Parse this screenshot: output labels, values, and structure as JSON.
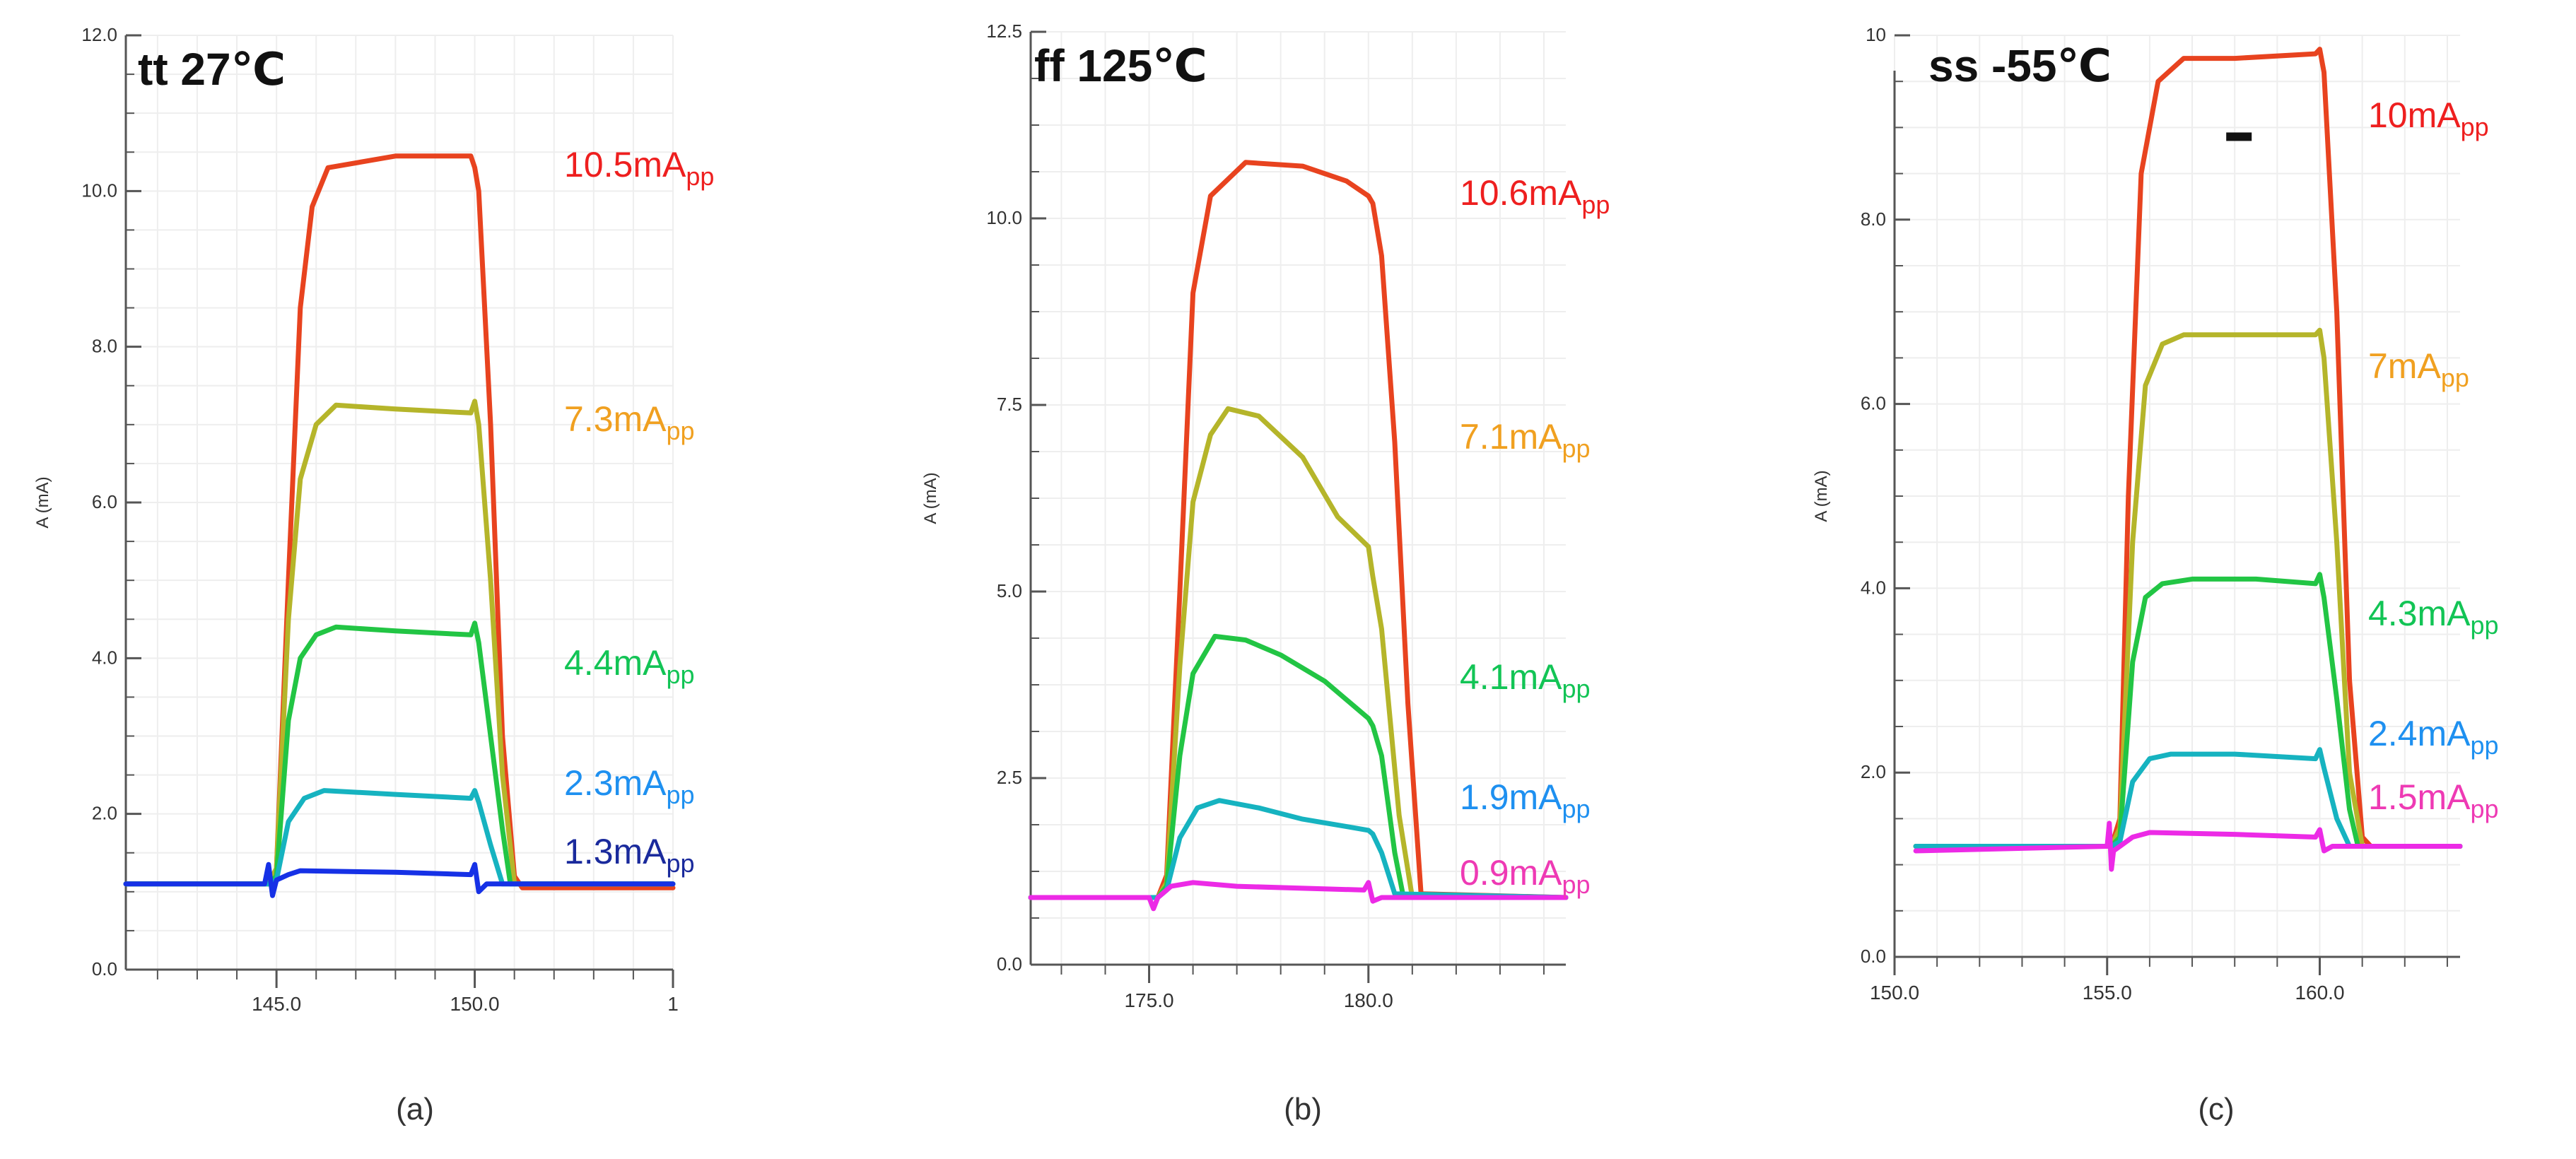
{
  "chart_data": [
    {
      "type": "line",
      "panel": "(a)",
      "title": "tt 27℃",
      "xlabel": "",
      "ylabel": "A (mA)",
      "xlim": [
        141.2,
        155.0
      ],
      "ylim": [
        0.0,
        12.0
      ],
      "xticks": [
        145.0,
        150.0
      ],
      "xtick_labels": [
        "145.0",
        "150.0"
      ],
      "trailing_xtick_label": "1",
      "yticks": [
        0.0,
        2.0,
        4.0,
        6.0,
        8.0,
        10.0,
        12.0
      ],
      "ytick_labels": [
        "0.0",
        "2.0",
        "4.0",
        "6.0",
        "8.0",
        "10.0",
        "12.0"
      ],
      "grid": true,
      "series": [
        {
          "name": "10.5mA",
          "sub": "pp",
          "color": "#e8431f",
          "x": [
            141.2,
            144.8,
            145.0,
            145.3,
            145.6,
            145.9,
            146.3,
            148.0,
            149.9,
            150.0,
            150.1,
            150.4,
            150.7,
            151.0,
            151.2,
            155.0
          ],
          "y": [
            1.1,
            1.1,
            1.3,
            5.0,
            8.5,
            9.8,
            10.3,
            10.45,
            10.45,
            10.3,
            10.0,
            7.0,
            3.0,
            1.2,
            1.05,
            1.05
          ]
        },
        {
          "name": "7.3mA",
          "sub": "pp",
          "color": "#b5b52a",
          "x": [
            141.2,
            144.8,
            145.0,
            145.3,
            145.6,
            146.0,
            146.5,
            148.0,
            149.9,
            150.0,
            150.1,
            150.4,
            150.7,
            151.0,
            155.0
          ],
          "y": [
            1.1,
            1.1,
            1.3,
            4.5,
            6.3,
            7.0,
            7.25,
            7.2,
            7.15,
            7.3,
            7.0,
            5.0,
            2.5,
            1.1,
            1.1
          ]
        },
        {
          "name": "4.4mA",
          "sub": "pp",
          "color": "#22c544",
          "x": [
            141.2,
            144.8,
            145.0,
            145.3,
            145.6,
            146.0,
            146.5,
            148.0,
            149.9,
            150.0,
            150.1,
            150.4,
            150.7,
            150.9,
            155.0
          ],
          "y": [
            1.1,
            1.1,
            1.2,
            3.2,
            4.0,
            4.3,
            4.4,
            4.35,
            4.3,
            4.45,
            4.2,
            3.0,
            1.8,
            1.1,
            1.1
          ]
        },
        {
          "name": "2.3mA",
          "sub": "pp",
          "color": "#16b3c0",
          "x": [
            141.2,
            144.8,
            145.0,
            145.3,
            145.7,
            146.2,
            148.0,
            149.9,
            150.0,
            150.1,
            150.4,
            150.7,
            155.0
          ],
          "y": [
            1.1,
            1.1,
            1.15,
            1.9,
            2.2,
            2.3,
            2.25,
            2.2,
            2.3,
            2.15,
            1.6,
            1.1,
            1.1
          ]
        },
        {
          "name": "1.3mA",
          "sub": "pp",
          "color": "#1631e6",
          "x": [
            141.2,
            144.7,
            144.8,
            144.9,
            145.0,
            145.3,
            145.6,
            148.0,
            149.9,
            150.0,
            150.1,
            150.3,
            150.6,
            155.0
          ],
          "y": [
            1.1,
            1.1,
            1.35,
            0.95,
            1.15,
            1.22,
            1.27,
            1.25,
            1.22,
            1.35,
            1.0,
            1.1,
            1.1,
            1.1
          ]
        }
      ]
    },
    {
      "type": "line",
      "panel": "(b)",
      "title": "ff 125℃",
      "xlabel": "",
      "ylabel": "A (mA)",
      "xlim": [
        172.3,
        184.5
      ],
      "ylim": [
        0.0,
        12.5
      ],
      "xticks": [
        175.0,
        180.0
      ],
      "xtick_labels": [
        "175.0",
        "180.0"
      ],
      "yticks": [
        0.0,
        2.5,
        5.0,
        7.5,
        10.0,
        12.5
      ],
      "ytick_labels": [
        "0.0",
        "2.5",
        "5.0",
        "7.5",
        "10.0",
        "12.5"
      ],
      "grid": true,
      "series": [
        {
          "name": "10.6mA",
          "sub": "pp",
          "color": "#e8431f",
          "x": [
            172.3,
            175.2,
            175.4,
            175.7,
            176.0,
            176.4,
            177.2,
            178.5,
            179.5,
            180.0,
            180.1,
            180.3,
            180.6,
            180.9,
            181.2,
            184.5
          ],
          "y": [
            0.9,
            0.9,
            1.2,
            5.0,
            9.0,
            10.3,
            10.75,
            10.7,
            10.5,
            10.3,
            10.2,
            9.5,
            7.0,
            3.5,
            0.95,
            0.9
          ]
        },
        {
          "name": "7.1mA",
          "sub": "pp",
          "color": "#b5b52a",
          "x": [
            172.3,
            175.2,
            175.4,
            175.7,
            176.0,
            176.4,
            176.8,
            177.5,
            178.5,
            179.3,
            180.0,
            180.1,
            180.3,
            180.7,
            181.0,
            184.5
          ],
          "y": [
            0.9,
            0.9,
            1.1,
            4.0,
            6.2,
            7.1,
            7.45,
            7.35,
            6.8,
            6.0,
            5.6,
            5.2,
            4.5,
            2.0,
            0.9,
            0.9
          ]
        },
        {
          "name": "4.1mA",
          "sub": "pp",
          "color": "#22c544",
          "x": [
            172.3,
            175.2,
            175.4,
            175.7,
            176.0,
            176.5,
            177.2,
            178.0,
            179.0,
            179.7,
            180.0,
            180.1,
            180.3,
            180.6,
            180.8,
            184.5
          ],
          "y": [
            0.9,
            0.9,
            1.05,
            2.8,
            3.9,
            4.4,
            4.35,
            4.15,
            3.8,
            3.45,
            3.3,
            3.2,
            2.8,
            1.5,
            0.9,
            0.9
          ]
        },
        {
          "name": "1.9mA",
          "sub": "pp",
          "color": "#16b3c0",
          "x": [
            172.3,
            175.2,
            175.4,
            175.7,
            176.1,
            176.6,
            177.5,
            178.5,
            179.5,
            180.0,
            180.1,
            180.3,
            180.6,
            184.5
          ],
          "y": [
            0.9,
            0.9,
            1.0,
            1.7,
            2.1,
            2.2,
            2.1,
            1.95,
            1.85,
            1.8,
            1.75,
            1.5,
            0.95,
            0.9
          ]
        },
        {
          "name": "0.9mA",
          "sub": "pp",
          "color": "#ec2ae6",
          "x": [
            172.3,
            175.0,
            175.1,
            175.2,
            175.5,
            176.0,
            177.0,
            179.9,
            180.0,
            180.1,
            180.3,
            184.5
          ],
          "y": [
            0.9,
            0.9,
            0.75,
            0.9,
            1.05,
            1.1,
            1.05,
            1.0,
            1.1,
            0.85,
            0.9,
            0.9
          ]
        }
      ]
    },
    {
      "type": "line",
      "panel": "(c)",
      "title": "ss -55℃",
      "xlabel": "",
      "ylabel": "A (mA)",
      "xlim": [
        150.0,
        163.3
      ],
      "ylim": [
        0.0,
        10.0
      ],
      "xticks": [
        150.0,
        155.0,
        160.0
      ],
      "xtick_labels": [
        "150.0",
        "155.0",
        "160.0"
      ],
      "yticks": [
        0.0,
        2.0,
        4.0,
        6.0,
        8.0,
        10.0
      ],
      "ytick_labels": [
        "0.0",
        "2.0",
        "4.0",
        "6.0",
        "8.0",
        "10"
      ],
      "grid": true,
      "series": [
        {
          "name": "10mA",
          "sub": "pp",
          "color": "#e8431f",
          "x": [
            150.5,
            155.1,
            155.3,
            155.5,
            155.8,
            156.2,
            156.8,
            158.0,
            159.9,
            160.0,
            160.1,
            160.4,
            160.7,
            161.0,
            161.2,
            163.3
          ],
          "y": [
            1.2,
            1.2,
            1.5,
            5.0,
            8.5,
            9.5,
            9.75,
            9.75,
            9.8,
            9.85,
            9.6,
            7.0,
            3.0,
            1.3,
            1.2,
            1.2
          ]
        },
        {
          "name": "7mA",
          "sub": "pp",
          "color": "#b5b52a",
          "x": [
            150.5,
            155.1,
            155.3,
            155.6,
            155.9,
            156.3,
            156.8,
            158.0,
            159.9,
            160.0,
            160.1,
            160.4,
            160.7,
            161.0,
            163.3
          ],
          "y": [
            1.2,
            1.2,
            1.4,
            4.5,
            6.2,
            6.65,
            6.75,
            6.75,
            6.75,
            6.8,
            6.5,
            4.5,
            2.0,
            1.2,
            1.2
          ]
        },
        {
          "name": "4.3mA",
          "sub": "pp",
          "color": "#22c544",
          "x": [
            150.5,
            155.1,
            155.3,
            155.6,
            155.9,
            156.3,
            157.0,
            158.5,
            159.9,
            160.0,
            160.1,
            160.4,
            160.7,
            160.9,
            163.3
          ],
          "y": [
            1.2,
            1.2,
            1.3,
            3.2,
            3.9,
            4.05,
            4.1,
            4.1,
            4.05,
            4.15,
            3.9,
            2.8,
            1.6,
            1.2,
            1.2
          ]
        },
        {
          "name": "2.4mA",
          "sub": "pp",
          "color": "#16b3c0",
          "x": [
            150.5,
            155.1,
            155.3,
            155.6,
            156.0,
            156.5,
            158.0,
            159.9,
            160.0,
            160.1,
            160.4,
            160.7,
            163.3
          ],
          "y": [
            1.2,
            1.2,
            1.25,
            1.9,
            2.15,
            2.2,
            2.2,
            2.15,
            2.25,
            2.05,
            1.5,
            1.2,
            1.2
          ]
        },
        {
          "name": "1.5mA",
          "sub": "pp",
          "color": "#ec2ae6",
          "x": [
            150.5,
            155.0,
            155.05,
            155.1,
            155.15,
            155.3,
            155.6,
            156.0,
            158.0,
            159.9,
            160.0,
            160.1,
            160.3,
            163.3
          ],
          "y": [
            1.15,
            1.2,
            1.45,
            0.95,
            1.15,
            1.2,
            1.3,
            1.35,
            1.33,
            1.3,
            1.38,
            1.15,
            1.2,
            1.2
          ]
        }
      ]
    }
  ],
  "label_colors": [
    "#ee1f1f",
    "#f0a020",
    "#12c455",
    "#1e90f0",
    "#1a2a9c",
    "#ee3ab4"
  ],
  "panels": [
    {
      "caption": "(a)",
      "labels": [
        {
          "value": "10.5mA",
          "sub": "pp",
          "color": "#ee1f1f"
        },
        {
          "value": "7.3mA",
          "sub": "pp",
          "color": "#f0a020"
        },
        {
          "value": "4.4mA",
          "sub": "pp",
          "color": "#12c455"
        },
        {
          "value": "2.3mA",
          "sub": "pp",
          "color": "#1e90f0"
        },
        {
          "value": "1.3mA",
          "sub": "pp",
          "color": "#1a2a9c"
        }
      ]
    },
    {
      "caption": "(b)",
      "labels": [
        {
          "value": "10.6mA",
          "sub": "pp",
          "color": "#ee1f1f"
        },
        {
          "value": "7.1mA",
          "sub": "pp",
          "color": "#f0a020"
        },
        {
          "value": "4.1mA",
          "sub": "pp",
          "color": "#12c455"
        },
        {
          "value": "1.9mA",
          "sub": "pp",
          "color": "#1e90f0"
        },
        {
          "value": "0.9mA",
          "sub": "pp",
          "color": "#ee3ab4"
        }
      ]
    },
    {
      "caption": "(c)",
      "labels": [
        {
          "value": "10mA",
          "sub": "pp",
          "color": "#ee1f1f"
        },
        {
          "value": "7mA",
          "sub": "pp",
          "color": "#f0a020"
        },
        {
          "value": "4.3mA",
          "sub": "pp",
          "color": "#12c455"
        },
        {
          "value": "2.4mA",
          "sub": "pp",
          "color": "#1e90f0"
        },
        {
          "value": "1.5mA",
          "sub": "pp",
          "color": "#ee3ab4"
        }
      ]
    }
  ]
}
